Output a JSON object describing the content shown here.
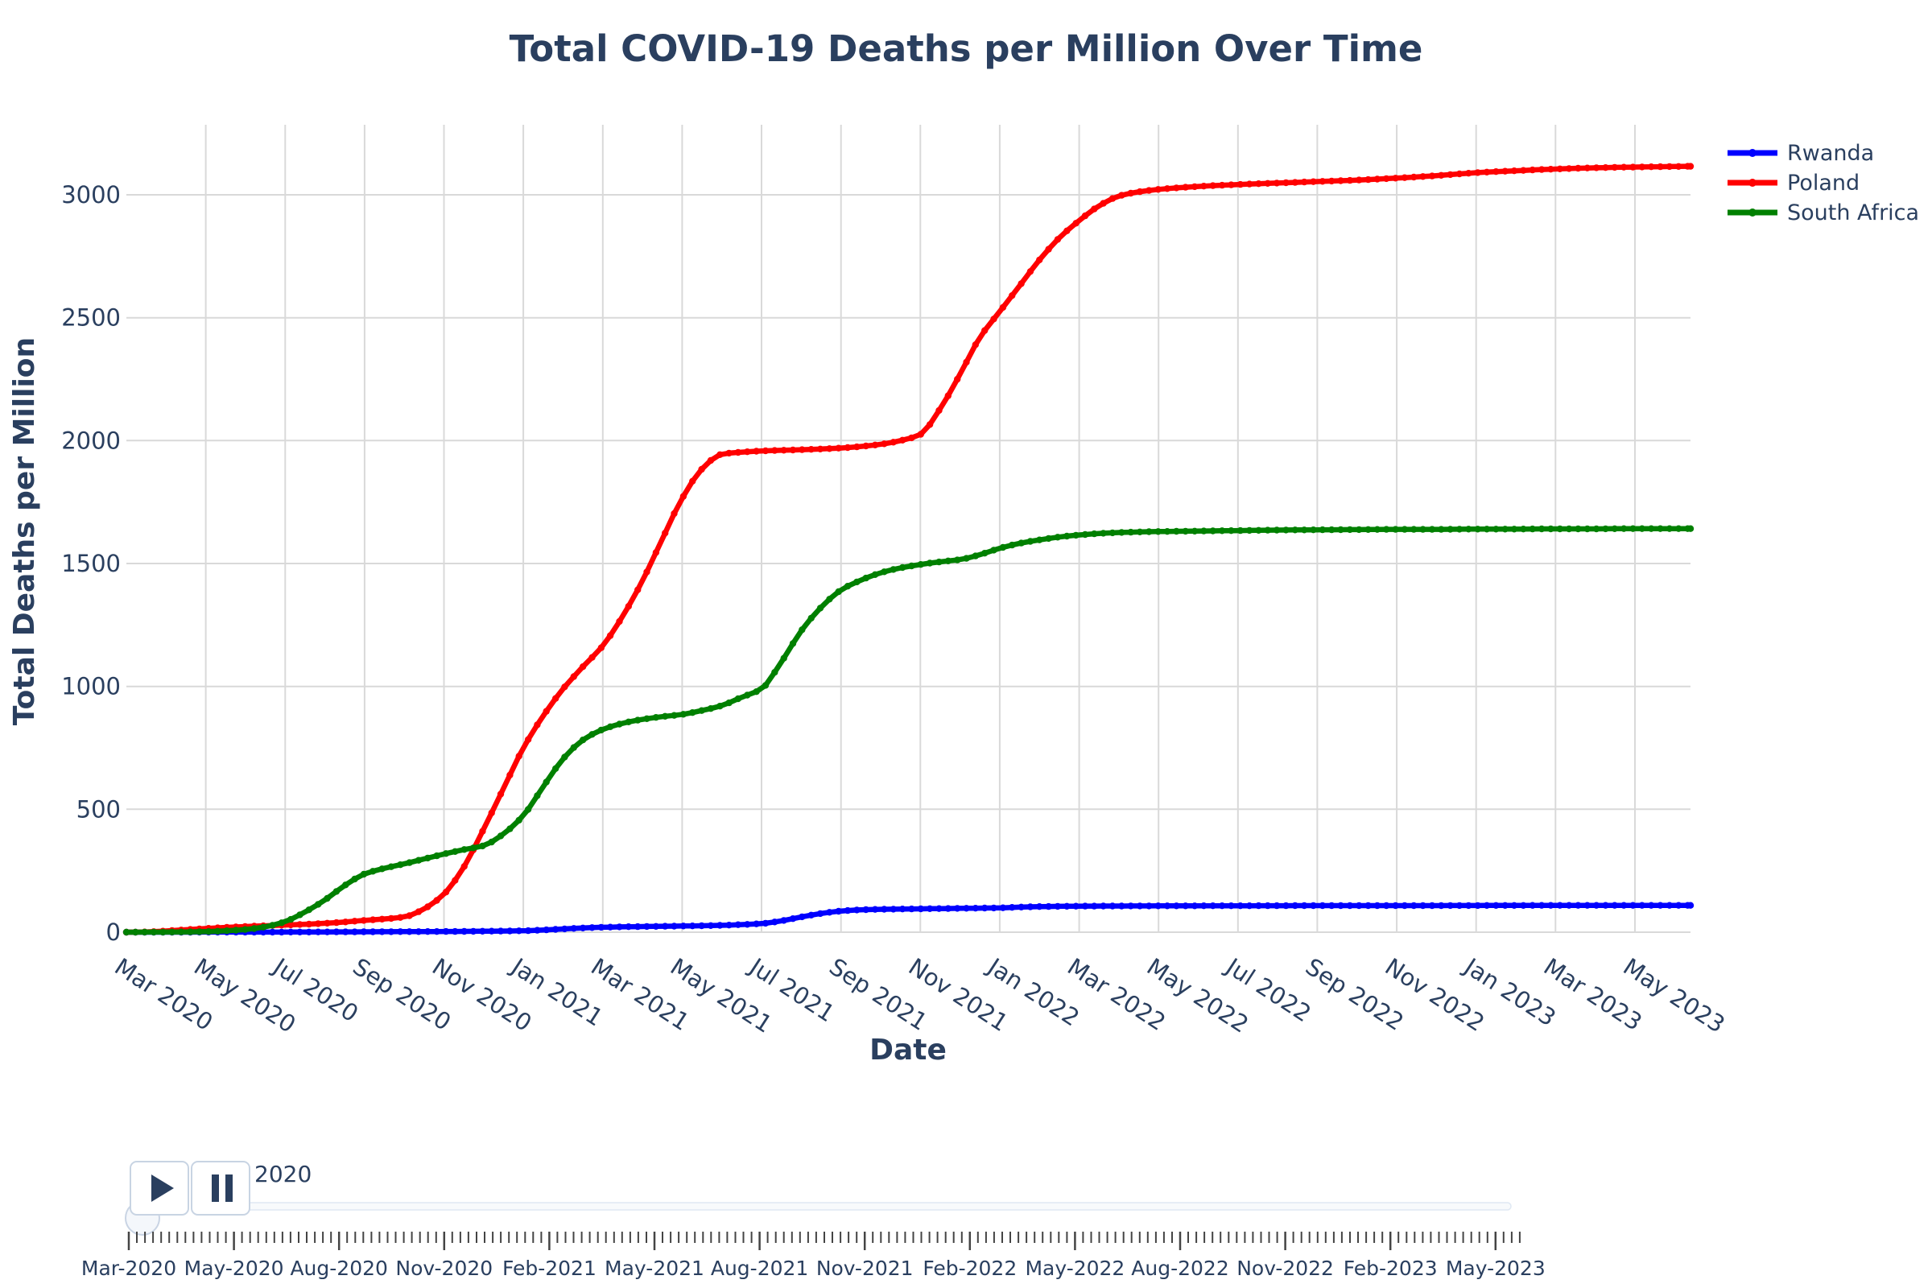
{
  "chart_data": {
    "type": "line",
    "title": "Total COVID-19 Deaths per Million Over Time",
    "xlabel": "Date",
    "ylabel": "Total Deaths per Million",
    "x_unit": "months since 2020-03-01",
    "xlim": [
      0,
      39.4
    ],
    "ylim": [
      0,
      3285
    ],
    "grid": true,
    "legend_position": "top-right-outside",
    "x_tick_positions": [
      0,
      2,
      4,
      6,
      8,
      10,
      12,
      14,
      16,
      18,
      20,
      22,
      24,
      26,
      28,
      30,
      32,
      34,
      36,
      38
    ],
    "x_tick_labels": [
      "Mar 2020",
      "May 2020",
      "Jul 2020",
      "Sep 2020",
      "Nov 2020",
      "Jan 2021",
      "Mar 2021",
      "May 2021",
      "Jul 2021",
      "Sep 2021",
      "Nov 2021",
      "Jan 2022",
      "Mar 2022",
      "May 2022",
      "Jul 2022",
      "Sep 2022",
      "Nov 2022",
      "Jan 2023",
      "Mar 2023",
      "May 2023"
    ],
    "y_ticks": [
      0,
      500,
      1000,
      1500,
      2000,
      2500,
      3000
    ],
    "y_tick_labels": [
      "0",
      "500",
      "1000",
      "1500",
      "2000",
      "2500",
      "3000"
    ],
    "series": [
      {
        "name": "Rwanda",
        "color": "#0000ff",
        "points": [
          [
            0,
            0
          ],
          [
            1,
            0.1
          ],
          [
            2,
            0.2
          ],
          [
            3,
            0.3
          ],
          [
            4,
            0.5
          ],
          [
            5,
            1
          ],
          [
            6,
            1.6
          ],
          [
            7,
            2.2
          ],
          [
            8,
            2.8
          ],
          [
            9,
            4
          ],
          [
            10,
            5.8
          ],
          [
            10.5,
            9
          ],
          [
            11,
            13
          ],
          [
            11.5,
            17
          ],
          [
            12,
            20
          ],
          [
            13,
            23
          ],
          [
            14,
            25
          ],
          [
            15,
            28
          ],
          [
            15.5,
            31
          ],
          [
            16,
            35
          ],
          [
            16.5,
            46
          ],
          [
            17,
            62
          ],
          [
            17.5,
            76
          ],
          [
            18,
            86
          ],
          [
            18.5,
            91
          ],
          [
            19,
            93
          ],
          [
            20,
            95
          ],
          [
            21,
            97
          ],
          [
            22,
            99
          ],
          [
            22.5,
            102
          ],
          [
            23,
            104
          ],
          [
            24,
            106
          ],
          [
            25,
            106.5
          ],
          [
            26,
            107
          ],
          [
            28,
            107.5
          ],
          [
            30,
            108
          ],
          [
            32,
            108
          ],
          [
            34,
            108.5
          ],
          [
            36,
            109
          ],
          [
            38,
            109
          ],
          [
            39.4,
            109
          ]
        ]
      },
      {
        "name": "Poland",
        "color": "#ff0000",
        "points": [
          [
            0,
            0
          ],
          [
            0.5,
            1
          ],
          [
            1,
            5
          ],
          [
            2,
            15
          ],
          [
            3,
            23
          ],
          [
            4,
            29
          ],
          [
            5,
            36
          ],
          [
            6,
            48
          ],
          [
            7,
            62
          ],
          [
            7.5,
            95
          ],
          [
            8,
            155
          ],
          [
            8.5,
            265
          ],
          [
            9,
            420
          ],
          [
            9.5,
            585
          ],
          [
            10,
            750
          ],
          [
            10.5,
            880
          ],
          [
            11,
            990
          ],
          [
            11.5,
            1080
          ],
          [
            12,
            1165
          ],
          [
            12.5,
            1285
          ],
          [
            13,
            1430
          ],
          [
            13.5,
            1600
          ],
          [
            14,
            1765
          ],
          [
            14.5,
            1885
          ],
          [
            15,
            1945
          ],
          [
            15.5,
            1953
          ],
          [
            16,
            1958
          ],
          [
            17,
            1963
          ],
          [
            18,
            1970
          ],
          [
            19,
            1985
          ],
          [
            19.5,
            2000
          ],
          [
            20,
            2025
          ],
          [
            20.5,
            2130
          ],
          [
            21,
            2270
          ],
          [
            21.5,
            2420
          ],
          [
            22,
            2525
          ],
          [
            22.5,
            2630
          ],
          [
            23,
            2735
          ],
          [
            23.5,
            2825
          ],
          [
            24,
            2895
          ],
          [
            24.5,
            2955
          ],
          [
            25,
            2995
          ],
          [
            25.5,
            3012
          ],
          [
            26,
            3022
          ],
          [
            27,
            3034
          ],
          [
            28,
            3042
          ],
          [
            29,
            3048
          ],
          [
            30,
            3054
          ],
          [
            31,
            3060
          ],
          [
            32,
            3068
          ],
          [
            33,
            3078
          ],
          [
            34,
            3090
          ],
          [
            35,
            3098
          ],
          [
            36,
            3105
          ],
          [
            37,
            3110
          ],
          [
            38,
            3113
          ],
          [
            39.4,
            3116
          ]
        ]
      },
      {
        "name": "South Africa",
        "color": "#008000",
        "points": [
          [
            0,
            0
          ],
          [
            1,
            0.5
          ],
          [
            2,
            2.5
          ],
          [
            3,
            11
          ],
          [
            3.5,
            22
          ],
          [
            4,
            43
          ],
          [
            4.5,
            82
          ],
          [
            5,
            131
          ],
          [
            5.5,
            190
          ],
          [
            6,
            237
          ],
          [
            6.5,
            260
          ],
          [
            7,
            278
          ],
          [
            7.5,
            298
          ],
          [
            8,
            318
          ],
          [
            8.5,
            336
          ],
          [
            9,
            352
          ],
          [
            9.5,
            400
          ],
          [
            10,
            475
          ],
          [
            10.5,
            592
          ],
          [
            11,
            705
          ],
          [
            11.5,
            782
          ],
          [
            12,
            825
          ],
          [
            12.5,
            850
          ],
          [
            13,
            866
          ],
          [
            13.5,
            877
          ],
          [
            14,
            886
          ],
          [
            14.5,
            902
          ],
          [
            15,
            922
          ],
          [
            15.5,
            956
          ],
          [
            16,
            990
          ],
          [
            16.5,
            1100
          ],
          [
            17,
            1226
          ],
          [
            17.5,
            1322
          ],
          [
            18,
            1392
          ],
          [
            18.5,
            1432
          ],
          [
            19,
            1462
          ],
          [
            19.5,
            1482
          ],
          [
            20,
            1496
          ],
          [
            20.5,
            1507
          ],
          [
            21,
            1516
          ],
          [
            21.5,
            1536
          ],
          [
            22,
            1562
          ],
          [
            22.5,
            1582
          ],
          [
            23,
            1596
          ],
          [
            23.5,
            1608
          ],
          [
            24,
            1616
          ],
          [
            24.5,
            1622
          ],
          [
            25,
            1626
          ],
          [
            26,
            1630
          ],
          [
            27,
            1632
          ],
          [
            28,
            1634
          ],
          [
            29,
            1636
          ],
          [
            30,
            1637
          ],
          [
            31,
            1638
          ],
          [
            32,
            1639
          ],
          [
            33,
            1639
          ],
          [
            34,
            1640
          ],
          [
            35,
            1640
          ],
          [
            36,
            1641
          ],
          [
            37,
            1641
          ],
          [
            38,
            1642
          ],
          [
            39.4,
            1642
          ]
        ]
      }
    ],
    "colors": {
      "text": "#2a3f5f",
      "grid": "#d9d9d9",
      "background": "#ffffff"
    }
  },
  "legend": {
    "items": [
      {
        "label": "Rwanda",
        "color": "#0000ff"
      },
      {
        "label": "Poland",
        "color": "#ff0000"
      },
      {
        "label": "South Africa",
        "color": "#008000"
      }
    ]
  },
  "slider": {
    "current_value": "2020",
    "labels": [
      "Mar-2020",
      "May-2020",
      "Aug-2020",
      "Nov-2020",
      "Feb-2021",
      "May-2021",
      "Aug-2021",
      "Nov-2021",
      "Feb-2022",
      "May-2022",
      "Aug-2022",
      "Nov-2022",
      "Feb-2023",
      "May-2023"
    ],
    "play_icon": "play-icon",
    "pause_icon": "pause-icon"
  }
}
